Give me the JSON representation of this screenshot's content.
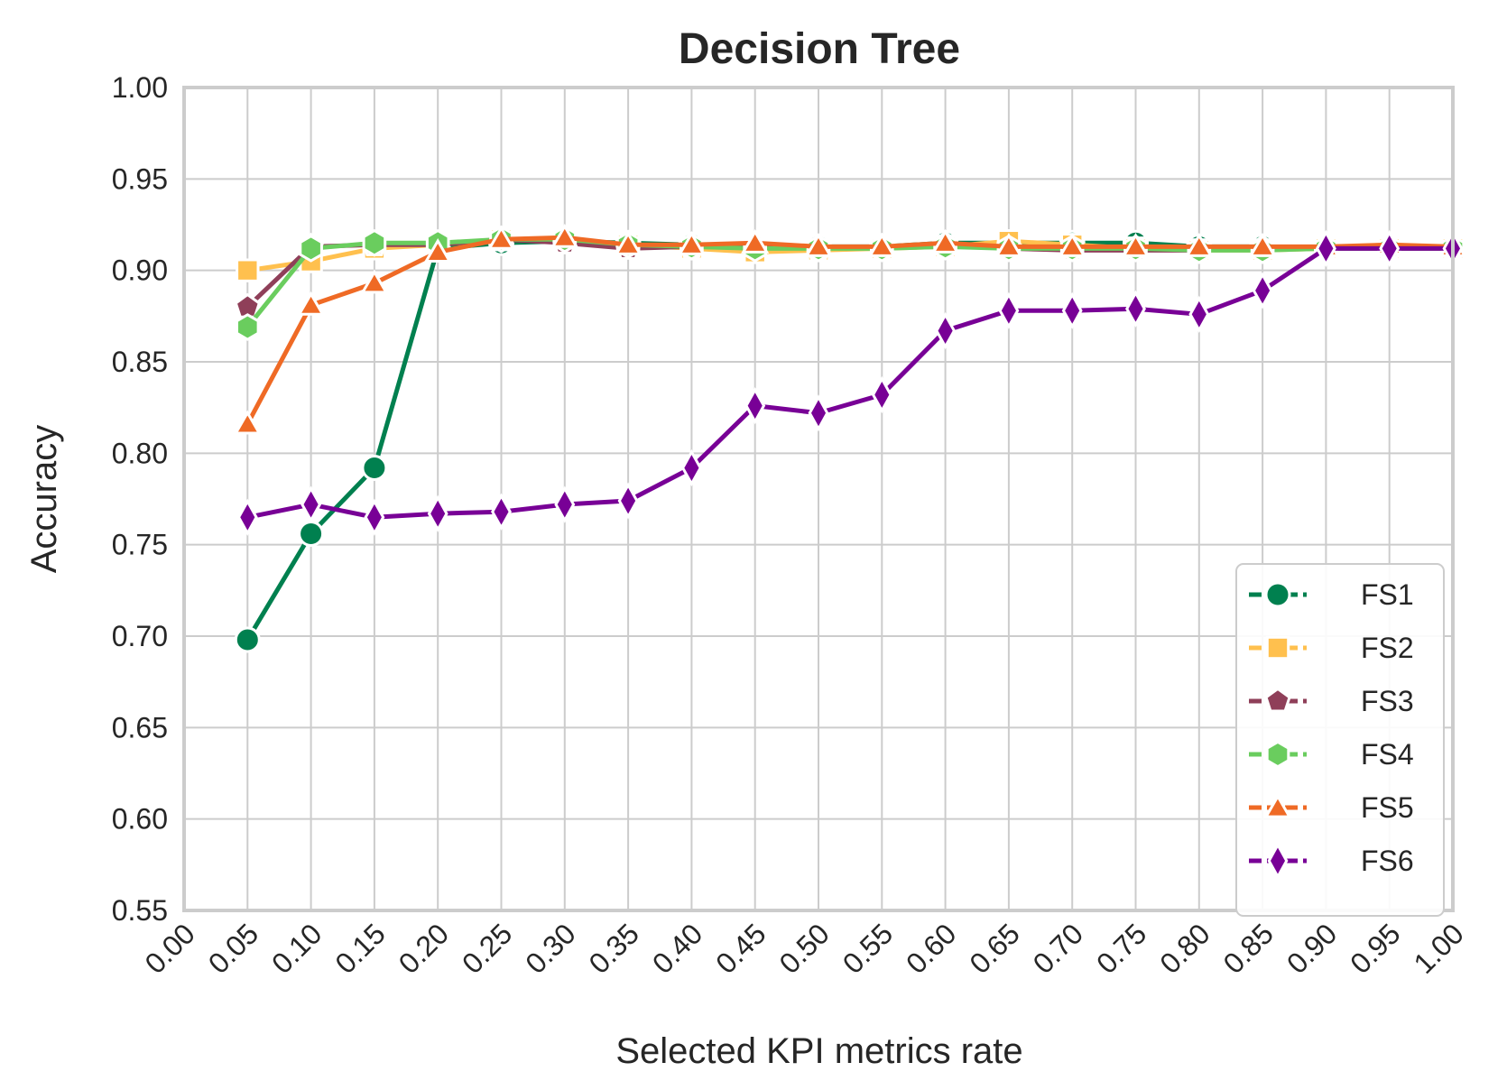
{
  "chart_data": {
    "type": "line",
    "title": "Decision Tree",
    "xlabel": "Selected KPI metrics rate",
    "ylabel": "Accuracy",
    "xlim": [
      0.0,
      1.0
    ],
    "ylim": [
      0.55,
      1.0
    ],
    "grid": true,
    "legend_position": "bottom-right",
    "xticks": [
      "0.00",
      "0.05",
      "0.10",
      "0.15",
      "0.20",
      "0.25",
      "0.30",
      "0.35",
      "0.40",
      "0.45",
      "0.50",
      "0.55",
      "0.60",
      "0.65",
      "0.70",
      "0.75",
      "0.80",
      "0.85",
      "0.90",
      "0.95",
      "1.00"
    ],
    "yticks": [
      "0.55",
      "0.60",
      "0.65",
      "0.70",
      "0.75",
      "0.80",
      "0.85",
      "0.90",
      "0.95",
      "1.00"
    ],
    "x": [
      0.05,
      0.1,
      0.15,
      0.2,
      0.25,
      0.3,
      0.35,
      0.4,
      0.45,
      0.5,
      0.55,
      0.6,
      0.65,
      0.7,
      0.75,
      0.8,
      0.85,
      0.9,
      0.95,
      1.0
    ],
    "series": [
      {
        "name": "FS1",
        "color": "#00804f",
        "marker": "circle",
        "values": [
          0.698,
          0.756,
          0.792,
          0.912,
          0.915,
          0.916,
          0.915,
          0.914,
          0.914,
          0.913,
          0.913,
          0.915,
          0.915,
          0.915,
          0.915,
          0.913,
          0.913,
          0.912,
          0.912,
          0.912
        ]
      },
      {
        "name": "FS2",
        "color": "#ffc04e",
        "marker": "square",
        "values": [
          0.9,
          0.905,
          0.912,
          0.914,
          0.917,
          0.916,
          0.914,
          0.912,
          0.91,
          0.911,
          0.912,
          0.913,
          0.916,
          0.914,
          0.912,
          0.911,
          0.911,
          0.912,
          0.912,
          0.912
        ]
      },
      {
        "name": "FS3",
        "color": "#8f3f59",
        "marker": "pentagon",
        "values": [
          0.88,
          0.913,
          0.914,
          0.914,
          0.917,
          0.915,
          0.912,
          0.913,
          0.914,
          0.912,
          0.913,
          0.914,
          0.912,
          0.911,
          0.911,
          0.911,
          0.912,
          0.912,
          0.912,
          0.912
        ]
      },
      {
        "name": "FS4",
        "color": "#6acd5e",
        "marker": "hexagon",
        "values": [
          0.869,
          0.912,
          0.915,
          0.915,
          0.917,
          0.917,
          0.914,
          0.913,
          0.912,
          0.912,
          0.912,
          0.913,
          0.912,
          0.912,
          0.912,
          0.911,
          0.911,
          0.912,
          0.912,
          0.912
        ]
      },
      {
        "name": "FS5",
        "color": "#ef6a25",
        "marker": "triangle",
        "values": [
          0.816,
          0.881,
          0.893,
          0.91,
          0.917,
          0.918,
          0.914,
          0.914,
          0.915,
          0.913,
          0.913,
          0.915,
          0.913,
          0.913,
          0.913,
          0.913,
          0.913,
          0.913,
          0.914,
          0.913
        ]
      },
      {
        "name": "FS6",
        "color": "#780096",
        "marker": "diamond",
        "values": [
          0.765,
          0.772,
          0.765,
          0.767,
          0.768,
          0.772,
          0.774,
          0.792,
          0.826,
          0.822,
          0.832,
          0.867,
          0.878,
          0.878,
          0.879,
          0.876,
          0.889,
          0.912,
          0.912,
          0.912
        ]
      }
    ]
  }
}
